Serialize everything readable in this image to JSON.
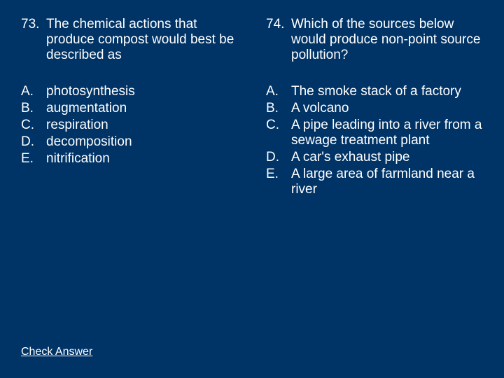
{
  "background_color": "#003366",
  "text_color": "#ffffff",
  "font_family": "Arial, sans-serif",
  "font_size": 19,
  "left": {
    "number": "73.",
    "text": "The chemical actions that produce compost would best be described as",
    "options": [
      {
        "letter": "A.",
        "text": "photosynthesis"
      },
      {
        "letter": "B.",
        "text": "augmentation"
      },
      {
        "letter": "C.",
        "text": "respiration"
      },
      {
        "letter": "D.",
        "text": "decomposition"
      },
      {
        "letter": "E.",
        "text": "nitrification"
      }
    ]
  },
  "right": {
    "number": "74.",
    "text": "Which of the sources below would produce non-point source pollution?",
    "options": [
      {
        "letter": "A.",
        "text": "The smoke stack of a factory"
      },
      {
        "letter": "B.",
        "text": "A volcano"
      },
      {
        "letter": "C.",
        "text": "A pipe leading into a river from a sewage treatment plant"
      },
      {
        "letter": "D.",
        "text": "A car's exhaust pipe"
      },
      {
        "letter": "E.",
        "text": "A large area of farmland near a river"
      }
    ]
  },
  "link_label": "Check Answer"
}
